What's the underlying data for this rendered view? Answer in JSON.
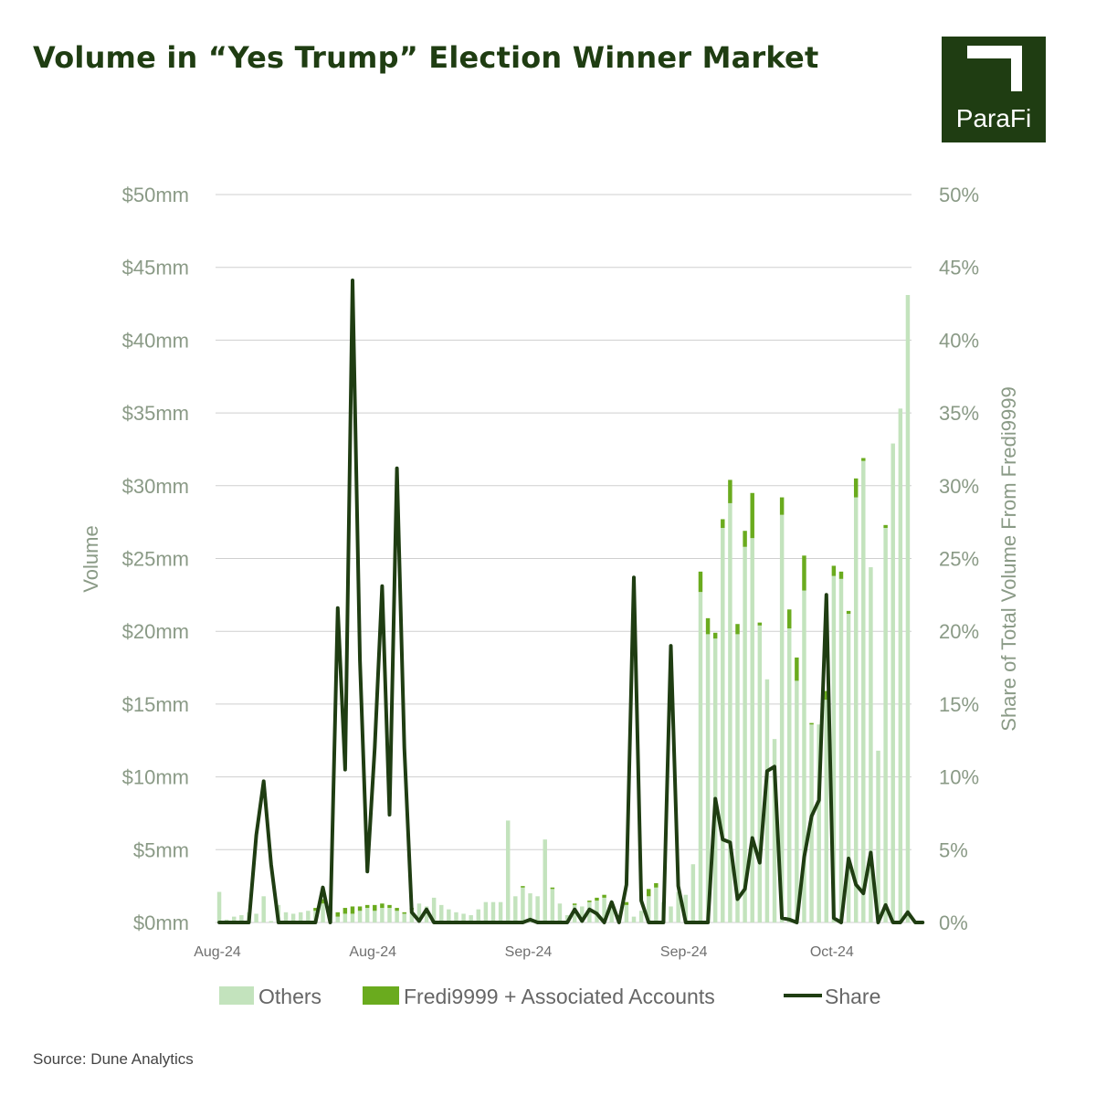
{
  "title": "Volume in “Yes Trump” Election Winner Market",
  "logo": {
    "text": "ParaFi",
    "background": "#1f3d12"
  },
  "source": "Source: Dune Analytics",
  "colors": {
    "others": "#c3e3bd",
    "fredi": "#6aab1e",
    "share": "#1f3d12",
    "axis_text": "#8a9a86",
    "grid": "#cfcfcf"
  },
  "chart_data": {
    "type": "bar",
    "combo": "stacked bar + line (secondary axis)",
    "x_tick_labels": [
      "Aug-24",
      "Aug-24",
      "Sep-24",
      "Sep-24",
      "Oct-24"
    ],
    "x_tick_positions": [
      0,
      21,
      42,
      63,
      83
    ],
    "ylabel": "Volume",
    "ylabel2": "Share of Total Volume From Fredi9999",
    "ylim": [
      0,
      50
    ],
    "ylim2": [
      0,
      50
    ],
    "y_ticks": [
      "$0mm",
      "$5mm",
      "$10mm",
      "$15mm",
      "$20mm",
      "$25mm",
      "$30mm",
      "$35mm",
      "$40mm",
      "$45mm",
      "$50mm"
    ],
    "y2_ticks": [
      "0%",
      "5%",
      "10%",
      "15%",
      "20%",
      "25%",
      "30%",
      "35%",
      "40%",
      "45%",
      "50%"
    ],
    "legend": {
      "position": "bottom",
      "items": [
        "Others",
        "Fredi9999 + Associated Accounts",
        "Share"
      ]
    },
    "grid": true,
    "series": [
      {
        "name": "Others",
        "kind": "bar",
        "values": [
          2.1,
          0.2,
          0.4,
          0.5,
          0.7,
          0.6,
          1.8,
          0.1,
          1.2,
          0.7,
          0.6,
          0.7,
          0.8,
          0.8,
          1.3,
          0.8,
          0.4,
          0.6,
          0.6,
          0.8,
          1.0,
          0.8,
          1.0,
          1.0,
          0.8,
          0.6,
          0.9,
          1.3,
          1.1,
          1.7,
          1.2,
          0.9,
          0.7,
          0.6,
          0.5,
          0.9,
          1.4,
          1.4,
          1.4,
          7.0,
          1.8,
          2.4,
          2.0,
          1.8,
          5.7,
          2.3,
          1.3,
          0.5,
          1.2,
          1.1,
          1.4,
          1.5,
          1.7,
          1.2,
          0.5,
          1.2,
          0.4,
          0.8,
          1.8,
          2.4,
          1.4,
          1.1,
          2.1,
          1.9,
          4.0,
          22.7,
          19.8,
          19.5,
          27.1,
          28.8,
          19.8,
          25.8,
          26.4,
          20.4,
          16.7,
          12.6,
          28.0,
          20.2,
          16.6,
          22.8,
          13.6,
          13.6,
          15.3,
          23.8,
          23.6,
          21.2,
          29.2,
          31.7,
          24.4,
          11.8,
          27.1,
          32.9,
          35.3,
          43.1
        ],
        "color": "#c3e3bd"
      },
      {
        "name": "Fredi9999 + Associated Accounts",
        "kind": "bar",
        "values": [
          0,
          0,
          0,
          0,
          0,
          0,
          0,
          0,
          0,
          0,
          0,
          0,
          0,
          0.2,
          0.3,
          0.2,
          0.3,
          0.4,
          0.5,
          0.3,
          0.2,
          0.4,
          0.3,
          0.2,
          0.2,
          0.1,
          0.1,
          0,
          0,
          0,
          0,
          0,
          0,
          0,
          0,
          0,
          0,
          0,
          0,
          0,
          0,
          0.1,
          0,
          0,
          0,
          0.1,
          0,
          0,
          0.1,
          0,
          0.1,
          0.2,
          0.2,
          0,
          0,
          0.2,
          0,
          0,
          0.5,
          0.3,
          0,
          0,
          0,
          0,
          0,
          1.4,
          1.1,
          0.4,
          0.6,
          1.6,
          0.7,
          1.1,
          3.1,
          0.2,
          0,
          0,
          1.2,
          1.3,
          1.6,
          2.4,
          0.1,
          0,
          0.6,
          0.7,
          0.5,
          0.2,
          1.3,
          0.2,
          0,
          0,
          0.2,
          0,
          0,
          0
        ],
        "color": "#6aab1e"
      },
      {
        "name": "Share",
        "kind": "line",
        "axis": "right",
        "values": [
          0,
          0,
          0,
          0,
          0,
          6,
          9.7,
          4,
          0,
          0,
          0,
          0,
          0,
          0,
          2.4,
          0,
          21.6,
          10.5,
          44.1,
          18,
          3.5,
          12,
          23.1,
          7.4,
          31.2,
          12,
          0.7,
          0.1,
          0.9,
          0,
          0,
          0,
          0,
          0,
          0,
          0,
          0,
          0,
          0,
          0,
          0,
          0,
          0.2,
          0,
          0,
          0,
          0,
          0,
          0.9,
          0.1,
          0.9,
          0.6,
          0,
          1.4,
          0,
          2.6,
          23.7,
          1.5,
          0,
          0,
          0,
          19,
          2.5,
          0,
          0,
          0,
          0,
          8.5,
          5.7,
          5.5,
          1.6,
          2.3,
          5.8,
          4.1,
          10.4,
          10.7,
          0.3,
          0.2,
          0,
          4.5,
          7.3,
          8.4,
          22.5,
          0.3,
          0,
          4.4,
          2.6,
          2,
          4.8,
          0,
          1.2,
          0,
          0,
          0.7,
          0,
          0
        ]
      }
    ]
  }
}
